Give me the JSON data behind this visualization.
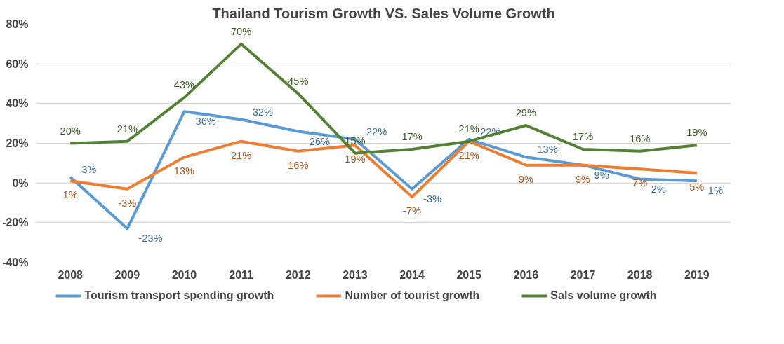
{
  "chart_data": {
    "type": "line",
    "title": "Thailand Tourism Growth VS. Sales Volume Growth",
    "categories": [
      "2008",
      "2009",
      "2010",
      "2011",
      "2012",
      "2013",
      "2014",
      "2015",
      "2016",
      "2017",
      "2018",
      "2019"
    ],
    "series": [
      {
        "name": "Tourism transport spending growth",
        "color": "#5b9bd5",
        "values": [
          3,
          -23,
          36,
          32,
          26,
          22,
          -3,
          22,
          13,
          9,
          2,
          1
        ],
        "value_labels": [
          "3%",
          "-23%",
          "36%",
          "32%",
          "26%",
          "22%",
          "-3%",
          "22%",
          "13%",
          "9%",
          "2%",
          "1%"
        ]
      },
      {
        "name": "Number of tourist growth",
        "color": "#ed7d31",
        "values": [
          1,
          -3,
          13,
          21,
          16,
          19,
          -7,
          21,
          9,
          9,
          7,
          5
        ],
        "value_labels": [
          "1%",
          "-3%",
          "13%",
          "21%",
          "16%",
          "19%",
          "-7%",
          "21%",
          "9%",
          "9%",
          "7%",
          "5%"
        ]
      },
      {
        "name": "Sals volume growth",
        "color": "#548235",
        "values": [
          20,
          21,
          43,
          70,
          45,
          15,
          17,
          21,
          29,
          17,
          16,
          19
        ],
        "value_labels": [
          "20%",
          "21%",
          "43%",
          "70%",
          "45%",
          "15%",
          "17%",
          "21%",
          "29%",
          "17%",
          "16%",
          "19%"
        ]
      }
    ],
    "ylim": [
      -40,
      80
    ],
    "yticks": [
      {
        "value": -40,
        "label": "-40%"
      },
      {
        "value": -20,
        "label": "-20%"
      },
      {
        "value": 0,
        "label": "0%"
      },
      {
        "value": 20,
        "label": "20%"
      },
      {
        "value": 40,
        "label": "40%"
      },
      {
        "value": 60,
        "label": "60%"
      },
      {
        "value": 80,
        "label": "80%"
      }
    ],
    "grid": "y",
    "legend": "bottom",
    "marker": "none",
    "line_style": "solid"
  }
}
